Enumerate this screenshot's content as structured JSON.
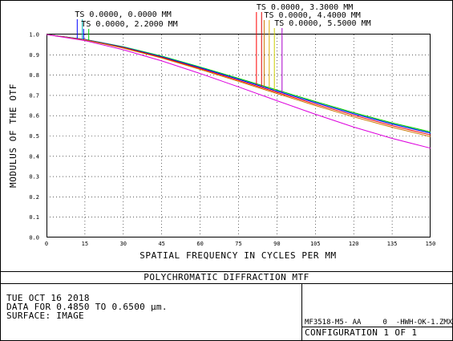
{
  "chart_data": {
    "type": "line",
    "title": "POLYCHROMATIC DIFFRACTION MTF",
    "xlabel": "SPATIAL FREQUENCY IN CYCLES PER MM",
    "ylabel": "MODULUS OF THE OTF",
    "xlim": [
      0,
      150
    ],
    "ylim": [
      0,
      1.0
    ],
    "xticks": [
      "0",
      "15",
      "30",
      "45",
      "60",
      "75",
      "90",
      "105",
      "120",
      "135",
      "150"
    ],
    "yticks": [
      "0.0",
      "0.1",
      "0.2",
      "0.3",
      "0.4",
      "0.5",
      "0.6",
      "0.7",
      "0.8",
      "0.9",
      "1.0"
    ],
    "grid": true,
    "x": [
      0,
      15,
      30,
      45,
      60,
      75,
      90,
      105,
      120,
      135,
      150
    ],
    "series": [
      {
        "color": "#00cc00",
        "values": [
          1.0,
          0.976,
          0.94,
          0.894,
          0.84,
          0.784,
          0.727,
          0.67,
          0.615,
          0.565,
          0.52
        ]
      },
      {
        "color": "#00bbbb",
        "values": [
          1.0,
          0.975,
          0.938,
          0.891,
          0.837,
          0.78,
          0.722,
          0.665,
          0.61,
          0.56,
          0.515
        ]
      },
      {
        "color": "#0000ff",
        "values": [
          1.0,
          0.975,
          0.937,
          0.89,
          0.836,
          0.779,
          0.721,
          0.664,
          0.609,
          0.559,
          0.514
        ]
      },
      {
        "color": "#ff0000",
        "values": [
          1.0,
          0.974,
          0.935,
          0.887,
          0.832,
          0.774,
          0.715,
          0.657,
          0.602,
          0.551,
          0.505
        ]
      },
      {
        "color": "#cc7700",
        "values": [
          1.0,
          0.973,
          0.933,
          0.884,
          0.828,
          0.769,
          0.709,
          0.65,
          0.594,
          0.543,
          0.497
        ]
      },
      {
        "color": "#dd00dd",
        "values": [
          1.0,
          0.97,
          0.925,
          0.87,
          0.808,
          0.742,
          0.674,
          0.607,
          0.544,
          0.488,
          0.44
        ]
      }
    ],
    "legend": [
      {
        "label": "TS 0.0000, 0.0000 MM",
        "x_freq": [
          12,
          14
        ],
        "colors": [
          "#0000ff",
          "#00bbbb"
        ]
      },
      {
        "label": "TS 0.0000, 2.2000 MM",
        "x_freq": [
          14.5,
          16.5
        ],
        "colors": [
          "#0000ff",
          "#00cc00"
        ]
      },
      {
        "label": "TS 0.0000, 3.3000 MM",
        "x_freq": [
          82,
          84
        ],
        "colors": [
          "#ff0000",
          "#dd0000"
        ]
      },
      {
        "label": "TS 0.0000, 4.4000 MM",
        "x_freq": [
          85,
          87
        ],
        "colors": [
          "#cc7700",
          "#ddaa00"
        ]
      },
      {
        "label": "TS 0.0000, 5.5000 MM",
        "x_freq": [
          89,
          92
        ],
        "colors": [
          "#cccc00",
          "#aa00cc"
        ]
      }
    ]
  },
  "info": {
    "date": "TUE OCT 16 2018",
    "data_range": "DATA FOR 0.4850 TO 0.6500 µm.",
    "surface": "SURFACE: IMAGE",
    "file": "MF3518-M5- AA     0  -HWH-OK-1.ZMX",
    "configuration": "CONFIGURATION 1 OF 1"
  }
}
